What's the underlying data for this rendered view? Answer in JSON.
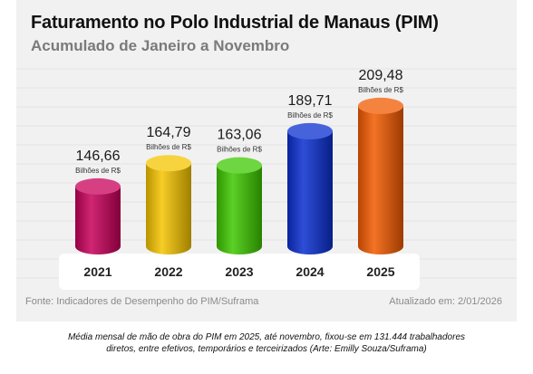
{
  "header": {
    "title": "Faturamento no Polo Industrial de Manaus (PIM)",
    "subtitle": "Acumulado de Janeiro a Novembro"
  },
  "footer": {
    "source": "Fonte: Indicadores de Desempenho do PIM/Suframa",
    "updated": "Atualizado em: 2/01/2026"
  },
  "caption": {
    "line1": "Média mensal de mão de obra do PIM em 2025, até novembro, fixou-se em 131.444 trabalhadores",
    "line2": "diretos, entre efetivos, temporários e terceirizados (Arte: Emilly Souza/Suframa)"
  },
  "chart_data": {
    "type": "bar",
    "title": "Faturamento no Polo Industrial de Manaus (PIM)",
    "subtitle": "Acumulado de Janeiro a Novembro",
    "categories": [
      "2021",
      "2022",
      "2023",
      "2024",
      "2025"
    ],
    "values": [
      146.66,
      164.79,
      163.06,
      189.71,
      209.48
    ],
    "value_labels": [
      "146,66",
      "164,79",
      "163,06",
      "189,71",
      "209,48"
    ],
    "unit_label": "Bilhões de R$",
    "colors": [
      "#c8005a",
      "#f5c400",
      "#3ec800",
      "#0a2fd0",
      "#f25a00"
    ],
    "grid": true,
    "legend": "none"
  }
}
